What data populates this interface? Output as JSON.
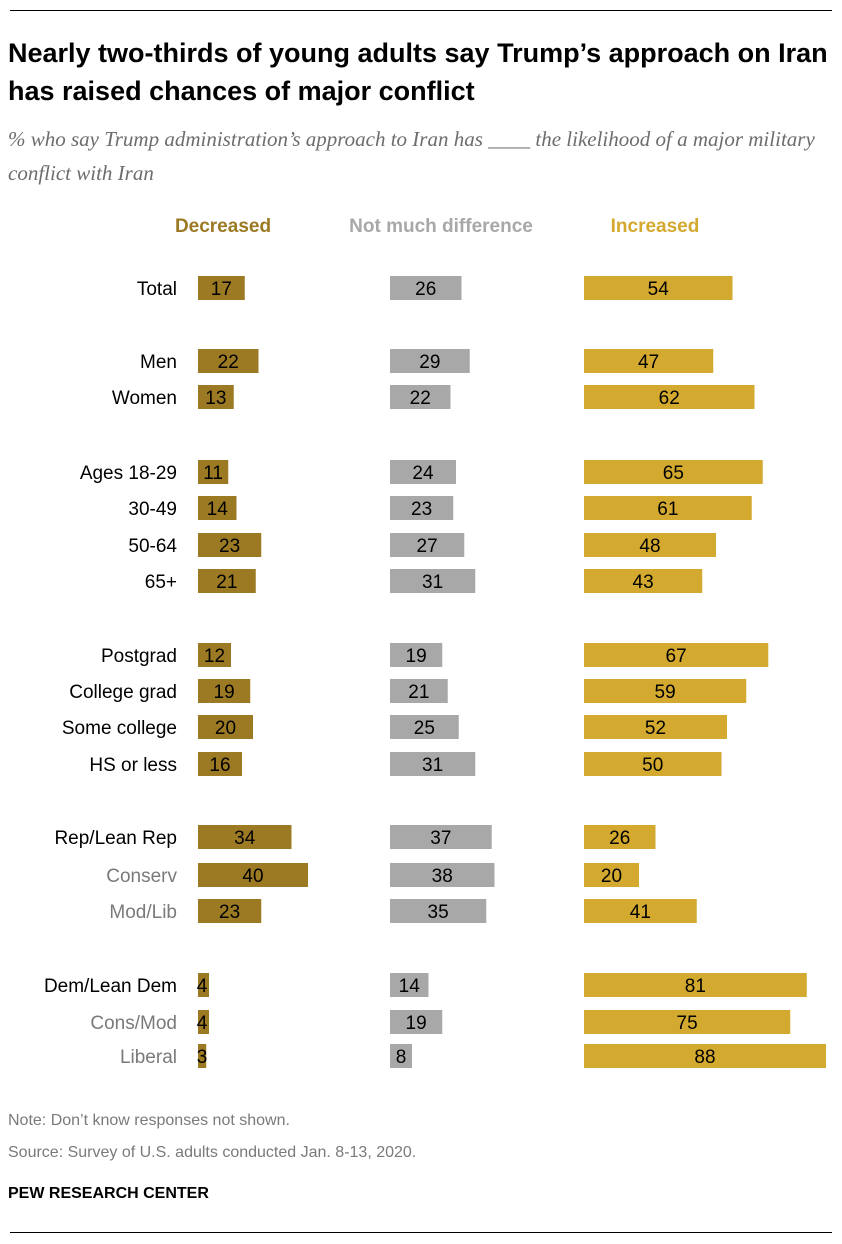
{
  "title": "Nearly two-thirds of young adults say Trump’s approach on Iran has raised chances of major conflict",
  "subtitle": "% who say Trump administration’s approach to Iran has ____ the likelihood of a major military conflict with Iran",
  "note": "Note: Don’t know responses not shown.",
  "source": "Source: Survey of U.S. adults conducted Jan. 8-13, 2020.",
  "brand": "PEW RESEARCH CENTER",
  "colors": {
    "decreased": "#9c7a24",
    "no_difference": "#a8a8a8",
    "increased": "#d3a92f",
    "decreased_header": "#9c7a24",
    "no_difference_header": "#a8a8a8",
    "increased_header": "#d3a92f",
    "sub_label": "#7a7a7a"
  },
  "chart_data": {
    "type": "bar",
    "orientation": "horizontal",
    "title": "Nearly two-thirds of young adults say Trump’s approach on Iran has raised chances of major conflict",
    "series": [
      {
        "name": "Decreased",
        "values": [
          17,
          22,
          13,
          11,
          14,
          23,
          21,
          12,
          19,
          20,
          16,
          34,
          40,
          23,
          4,
          4,
          3
        ]
      },
      {
        "name": "Not much difference",
        "values": [
          26,
          29,
          22,
          24,
          23,
          27,
          31,
          19,
          21,
          25,
          31,
          37,
          38,
          35,
          14,
          19,
          8
        ]
      },
      {
        "name": "Increased",
        "values": [
          54,
          47,
          62,
          65,
          61,
          48,
          43,
          67,
          59,
          52,
          50,
          26,
          20,
          41,
          81,
          75,
          88
        ]
      }
    ],
    "categories": [
      "Total",
      "Men",
      "Women",
      "Ages 18-29",
      "30-49",
      "50-64",
      "65+",
      "Postgrad",
      "College grad",
      "Some college",
      "HS or less",
      "Rep/Lean Rep",
      "Conserv",
      "Mod/Lib",
      "Dem/Lean Dem",
      "Cons/Mod",
      "Liberal"
    ],
    "sub_categories": [
      "Conserv",
      "Mod/Lib",
      "Cons/Mod",
      "Liberal"
    ],
    "xlabel": "",
    "ylabel": "",
    "unit": "%"
  }
}
